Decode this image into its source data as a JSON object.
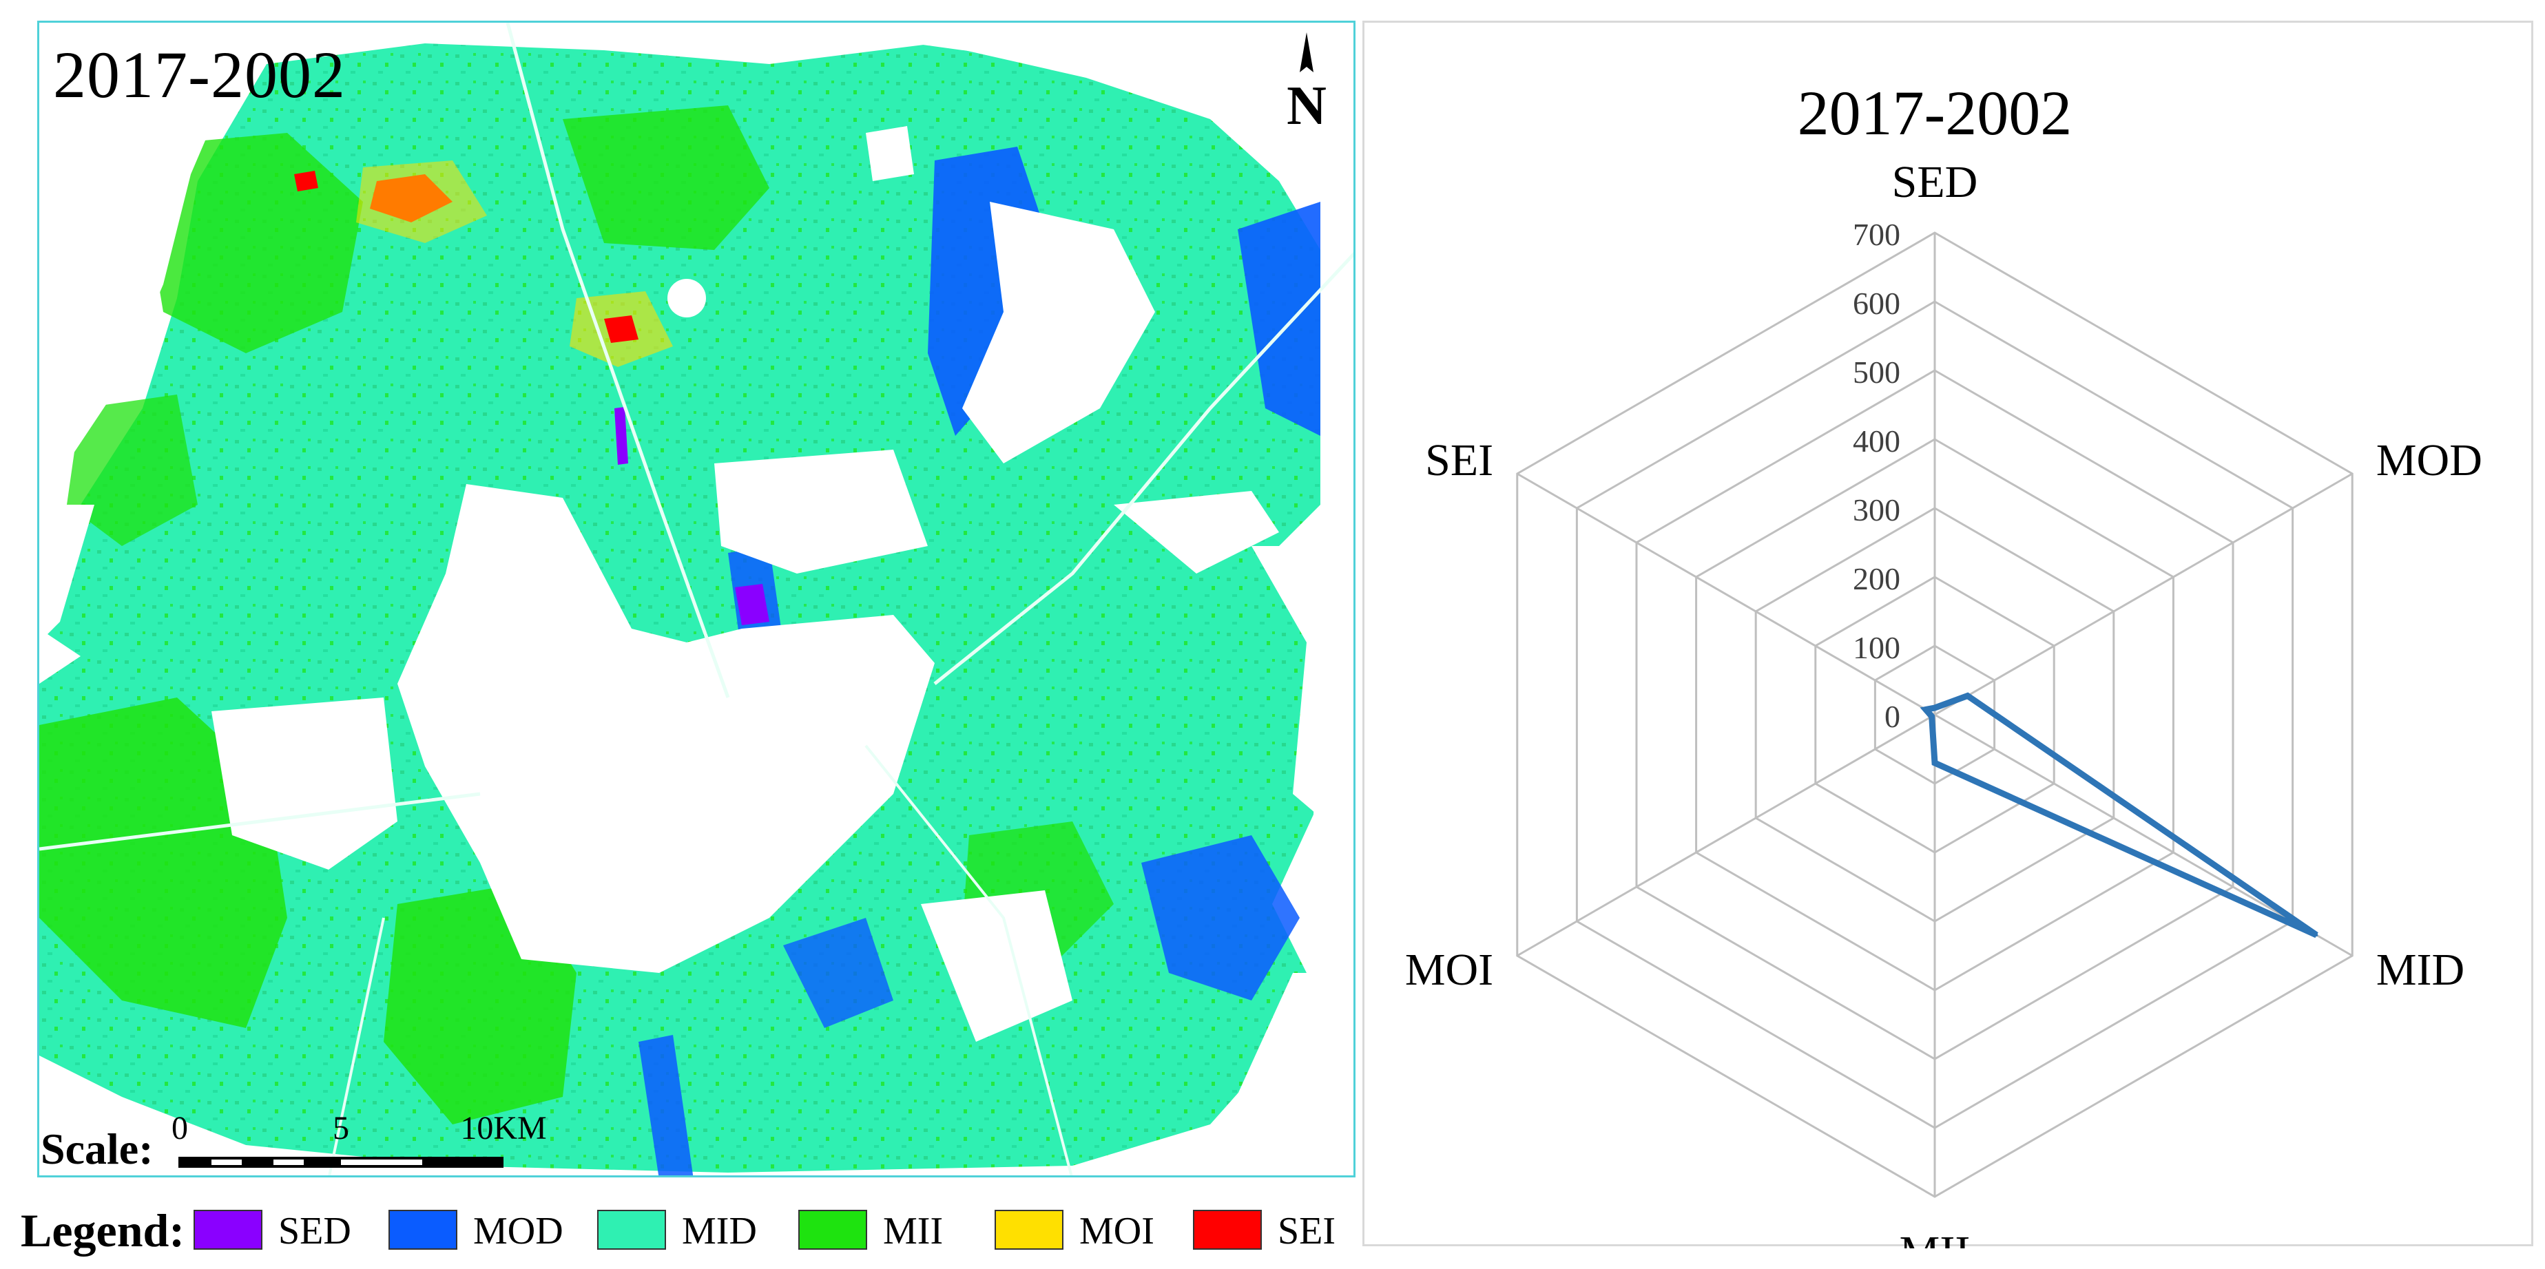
{
  "map": {
    "title": "2017-2002",
    "north_label": "N",
    "scale": {
      "label": "Scale:",
      "ticks": [
        "0",
        "5",
        "10KM"
      ]
    }
  },
  "legend": {
    "label": "Legend:",
    "items": [
      {
        "name": "SED",
        "color": "#8a00ff"
      },
      {
        "name": "MOD",
        "color": "#0a5cff"
      },
      {
        "name": "MID",
        "color": "#2ff0b2"
      },
      {
        "name": "MII",
        "color": "#1ee30f"
      },
      {
        "name": "MOI",
        "color": "#ffe000"
      },
      {
        "name": "SEI",
        "color": "#ff0000"
      }
    ]
  },
  "colors": {
    "map_border": "#4fd1d9",
    "series_line": "#2e75b6",
    "grid": "#bfbfbf"
  },
  "chart_data": {
    "type": "radar",
    "title": "2017-2002",
    "axes": [
      "SED",
      "MOD",
      "MID",
      "MII",
      "MOI",
      "SEI"
    ],
    "ticks": [
      "0",
      "100",
      "200",
      "300",
      "400",
      "500",
      "600",
      "700"
    ],
    "ylim": [
      0,
      700
    ],
    "grid": true,
    "series": [
      {
        "values": [
          10,
          55,
          640,
          70,
          5,
          15
        ],
        "color": "#2e75b6"
      }
    ]
  }
}
